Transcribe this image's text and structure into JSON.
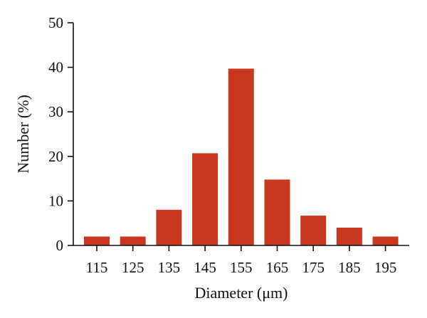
{
  "chart_data": {
    "type": "bar",
    "categories": [
      "115",
      "125",
      "135",
      "145",
      "155",
      "165",
      "175",
      "185",
      "195"
    ],
    "values": [
      2,
      2,
      8,
      20.7,
      39.7,
      14.8,
      6.7,
      4,
      2
    ],
    "xlabel": "Diameter (μm)",
    "ylabel": "Number (%)",
    "ylim": [
      0,
      50
    ],
    "yticks": [
      "0",
      "10",
      "20",
      "30",
      "40",
      "50"
    ],
    "bar_color": "#c9381e",
    "grid": false,
    "legend": "none"
  }
}
